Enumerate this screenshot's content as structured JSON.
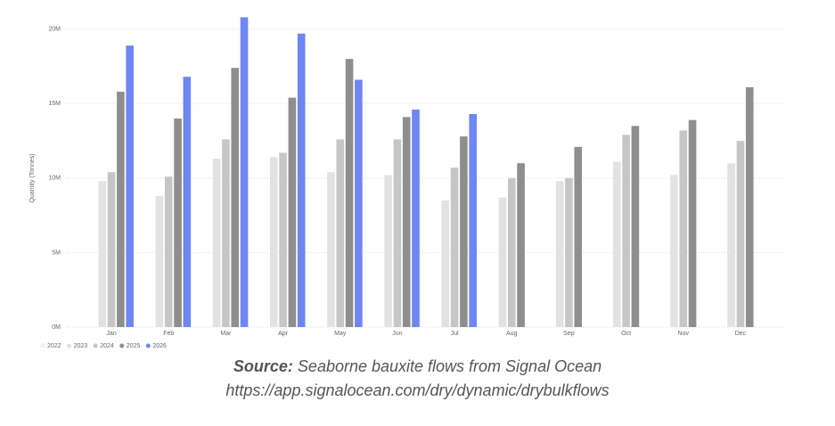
{
  "chart_data": {
    "type": "bar",
    "y_label": "Quantity (Tonnes)",
    "categories": [
      "Jan",
      "Feb",
      "Mar",
      "Apr",
      "May",
      "Jun",
      "Jul",
      "Aug",
      "Sep",
      "Oct",
      "Nov",
      "Dec"
    ],
    "series": [
      {
        "name": "2022",
        "color": "#f0f0f0",
        "values": [
          null,
          null,
          null,
          null,
          null,
          null,
          null,
          null,
          null,
          null,
          null,
          null
        ]
      },
      {
        "name": "2023",
        "color": "#e2e2e2",
        "values": [
          9800000,
          8800000,
          11300000,
          11400000,
          10400000,
          10200000,
          8500000,
          8700000,
          9800000,
          11100000,
          10200000,
          11000000
        ]
      },
      {
        "name": "2024",
        "color": "#c6c6c6",
        "values": [
          10400000,
          10100000,
          12600000,
          11700000,
          12600000,
          12600000,
          10700000,
          10000000,
          10000000,
          12900000,
          13200000,
          12500000
        ]
      },
      {
        "name": "2025",
        "color": "#8e8e8e",
        "values": [
          15800000,
          14000000,
          17400000,
          15400000,
          18000000,
          14100000,
          12800000,
          11000000,
          12100000,
          13500000,
          13900000,
          16100000
        ]
      },
      {
        "name": "2026",
        "color": "#6f86f5",
        "values": [
          18900000,
          16800000,
          20800000,
          19700000,
          16600000,
          14600000,
          14300000,
          null,
          null,
          null,
          null,
          null
        ]
      }
    ],
    "ylim": [
      0,
      21000000
    ],
    "yticks": [
      {
        "value": 0,
        "label": "0M"
      },
      {
        "value": 5000000,
        "label": "5M"
      },
      {
        "value": 10000000,
        "label": "10M"
      },
      {
        "value": 15000000,
        "label": "15M"
      },
      {
        "value": 20000000,
        "label": "20M"
      }
    ],
    "grid": true,
    "legend": "bottom-left",
    "caption": {
      "source_label": "Source:",
      "source_text": "Seaborne bauxite flows from Signal Ocean",
      "url": "https://app.signalocean.com/dry/dynamic/drybulkflows"
    }
  }
}
